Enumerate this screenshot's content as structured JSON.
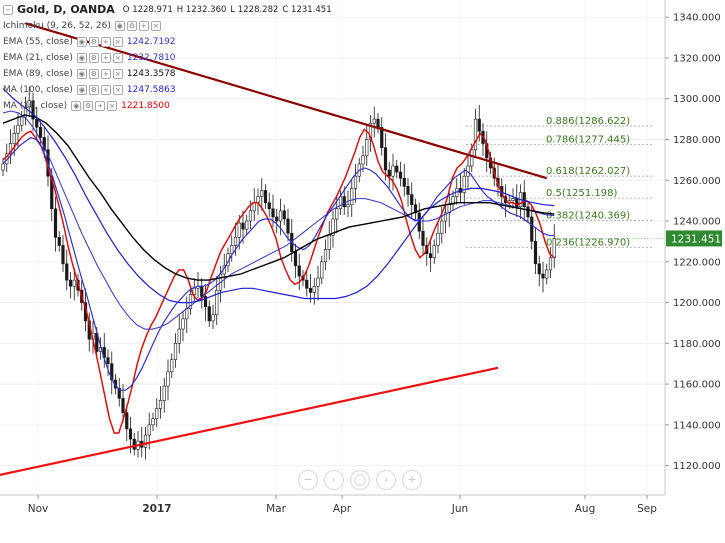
{
  "chart_title": {
    "symbol": "Gold, D, OANDA",
    "ohlc": [
      "O 1228.971",
      "H 1232.360",
      "L 1228.282",
      "C 1231.451"
    ]
  },
  "indicators": [
    {
      "label": "Ichimoku (9, 26, 52, 26)",
      "value": ""
    },
    {
      "label": "EMA (55, close)",
      "value": "1242.7192",
      "color": "#3333cc"
    },
    {
      "label": "EMA (21, close)",
      "value": "1232.7810",
      "color": "#3333cc"
    },
    {
      "label": "EMA (89, close)",
      "value": "1243.3578",
      "color": "#000000"
    },
    {
      "label": "MA (100, close)",
      "value": "1247.5863",
      "color": "#1f1fd6"
    },
    {
      "label": "MA (10, close)",
      "value": "1221.8500",
      "color": "#e00000"
    }
  ],
  "chart_data": {
    "type": "line",
    "instrument": "Gold, D, OANDA",
    "x_axis_labels": [
      "Nov",
      "2017",
      "Mar",
      "Apr",
      "Jun",
      "Aug",
      "Sep"
    ],
    "y_ticks": [
      1120,
      1140,
      1160,
      1180,
      1200,
      1220,
      1240,
      1260,
      1280,
      1300,
      1320,
      1340
    ],
    "ylim": [
      1110,
      1345
    ],
    "last_price": "1231.451",
    "fibonacci": [
      {
        "label": "0.886(1286.622)",
        "value": 1286.622
      },
      {
        "label": "0.786(1277.445)",
        "value": 1277.445
      },
      {
        "label": "0.618(1262.027)",
        "value": 1262.027
      },
      {
        "label": "0.5(1251.198)",
        "value": 1251.198
      },
      {
        "label": "0.382(1240.369)",
        "value": 1240.369
      },
      {
        "label": "0.236(1226.970)",
        "value": 1226.97
      }
    ],
    "closes": [
      1268,
      1273,
      1278,
      1283,
      1287,
      1291,
      1296,
      1299,
      1290,
      1286,
      1281,
      1275,
      1262,
      1246,
      1232,
      1228,
      1219,
      1211,
      1208,
      1211,
      1206,
      1200,
      1191,
      1182,
      1185,
      1176,
      1178,
      1173,
      1170,
      1162,
      1158,
      1153,
      1146,
      1138,
      1133,
      1128,
      1132,
      1129,
      1135,
      1140,
      1143,
      1148,
      1152,
      1159,
      1166,
      1172,
      1180,
      1187,
      1192,
      1197,
      1204,
      1207,
      1208,
      1203,
      1198,
      1191,
      1194,
      1206,
      1214,
      1218,
      1224,
      1228,
      1232,
      1239,
      1236,
      1240,
      1245,
      1249,
      1252,
      1255,
      1249,
      1246,
      1242,
      1240,
      1245,
      1241,
      1234,
      1225,
      1218,
      1213,
      1211,
      1207,
      1205,
      1208,
      1212,
      1220,
      1226,
      1233,
      1241,
      1246,
      1252,
      1247,
      1248,
      1256,
      1262,
      1268,
      1272,
      1280,
      1288,
      1290,
      1286,
      1276,
      1265,
      1262,
      1267,
      1264,
      1261,
      1257,
      1253,
      1248,
      1244,
      1235,
      1228,
      1224,
      1222,
      1228,
      1234,
      1240,
      1244,
      1248,
      1252,
      1256,
      1254,
      1262,
      1267,
      1275,
      1290,
      1284,
      1278,
      1271,
      1266,
      1261,
      1257,
      1252,
      1249,
      1250,
      1251,
      1247,
      1254,
      1247,
      1242,
      1230,
      1219,
      1214,
      1212,
      1216,
      1222,
      1231.451
    ],
    "series": [
      {
        "name": "MA (10, close)",
        "color": "#e00000",
        "width": 1.4,
        "values": [
          1270,
          1272,
          1275,
          1278,
          1281,
          1283,
          1284,
          1281,
          1278,
          1272,
          1264,
          1257,
          1248,
          1239,
          1228,
          1219,
          1211,
          1203,
          1196,
          1186,
          1176,
          1165,
          1154,
          1143,
          1136,
          1136,
          1143,
          1151,
          1160,
          1170,
          1178,
          1184,
          1189,
          1193,
          1198,
          1203,
          1208,
          1213,
          1216,
          1216,
          1211,
          1204,
          1201,
          1202,
          1206,
          1213,
          1219,
          1225,
          1229,
          1233,
          1237,
          1241,
          1244,
          1247,
          1249,
          1249,
          1246,
          1242,
          1237,
          1231,
          1222,
          1216,
          1211,
          1209,
          1210,
          1213,
          1218,
          1225,
          1232,
          1238,
          1244,
          1248,
          1252,
          1257,
          1262,
          1268,
          1274,
          1281,
          1285,
          1283,
          1277,
          1269,
          1264,
          1262,
          1260,
          1256,
          1250,
          1241,
          1233,
          1226,
          1222,
          1224,
          1229,
          1235,
          1240,
          1245,
          1252,
          1261,
          1266,
          1268,
          1271,
          1275,
          1279,
          1283,
          1280,
          1273,
          1264,
          1257,
          1252,
          1249,
          1249,
          1248,
          1249,
          1250,
          1248,
          1244,
          1238,
          1230,
          1224,
          1221.85
        ]
      },
      {
        "name": "EMA (21, close)",
        "color": "#3333cc",
        "width": 1.2,
        "values": [
          1268,
          1271,
          1274,
          1277,
          1279,
          1281,
          1280,
          1276,
          1269,
          1261,
          1252,
          1243,
          1233,
          1223,
          1213,
          1204,
          1194,
          1184,
          1174,
          1166,
          1160,
          1157,
          1157,
          1159,
          1163,
          1168,
          1174,
          1180,
          1186,
          1191,
          1195,
          1199,
          1202,
          1205,
          1207,
          1208,
          1208,
          1209,
          1211,
          1214,
          1218,
          1223,
          1227,
          1231,
          1234,
          1237,
          1240,
          1241,
          1241,
          1239,
          1236,
          1232,
          1229,
          1227,
          1226,
          1228,
          1232,
          1237,
          1242,
          1246,
          1250,
          1254,
          1258,
          1262,
          1265,
          1266,
          1265,
          1263,
          1260,
          1257,
          1253,
          1249,
          1245,
          1242,
          1240,
          1241,
          1244,
          1248,
          1252,
          1255,
          1258,
          1261,
          1263,
          1265,
          1263,
          1259,
          1255,
          1252,
          1250,
          1248,
          1246,
          1244,
          1243,
          1242,
          1240,
          1238,
          1236,
          1234,
          1233,
          1232.78
        ]
      },
      {
        "name": "EMA (55, close)",
        "color": "#3333cc",
        "width": 1.0,
        "values": [
          1293,
          1294,
          1293,
          1290,
          1285,
          1278,
          1270,
          1261,
          1252,
          1243,
          1234,
          1226,
          1218,
          1211,
          1204,
          1198,
          1193,
          1189,
          1187,
          1187,
          1188,
          1190,
          1193,
          1196,
          1199,
          1202,
          1205,
          1208,
          1211,
          1214,
          1216,
          1218,
          1220,
          1222,
          1224,
          1226,
          1228,
          1231,
          1234,
          1237,
          1240,
          1243,
          1246,
          1248,
          1250,
          1251,
          1251,
          1250,
          1249,
          1247,
          1245,
          1243,
          1241,
          1240,
          1240,
          1241,
          1243,
          1245,
          1247,
          1248,
          1249,
          1250,
          1250,
          1249,
          1248,
          1247,
          1246,
          1245,
          1244,
          1243,
          1242.72
        ]
      },
      {
        "name": "EMA (89, close)",
        "color": "#000000",
        "width": 1.4,
        "values": [
          1288,
          1290,
          1292,
          1291,
          1288,
          1283,
          1277,
          1269,
          1261,
          1254,
          1246,
          1239,
          1232,
          1226,
          1221,
          1217,
          1214,
          1212,
          1211,
          1211,
          1212,
          1213,
          1214,
          1216,
          1218,
          1220,
          1222,
          1225,
          1228,
          1231,
          1233,
          1235,
          1237,
          1238,
          1239,
          1240,
          1241,
          1242,
          1244,
          1246,
          1247,
          1248,
          1249,
          1249,
          1249,
          1249,
          1248,
          1247,
          1246,
          1245,
          1244,
          1243.36
        ]
      },
      {
        "name": "MA (100, close)",
        "color": "#1f1fd6",
        "width": 1.2,
        "values": [
          1305,
          1300,
          1296,
          1292,
          1286,
          1279,
          1271,
          1262,
          1252,
          1243,
          1234,
          1226,
          1219,
          1213,
          1208,
          1204,
          1201,
          1200,
          1200,
          1201,
          1203,
          1205,
          1206,
          1207,
          1207,
          1206,
          1205,
          1204,
          1203,
          1202,
          1202,
          1202,
          1202,
          1203,
          1205,
          1208,
          1213,
          1219,
          1226,
          1233,
          1240,
          1246,
          1250,
          1253,
          1255,
          1256,
          1256,
          1255,
          1254,
          1252,
          1250,
          1249,
          1248,
          1247.59
        ]
      }
    ],
    "trendlines": [
      {
        "name": "upper resistance",
        "color": "#8b0000",
        "from": {
          "i": 6,
          "price": 1337
        },
        "to": {
          "i": 145,
          "price": 1261
        }
      },
      {
        "name": "lower support",
        "color": "#ee1111",
        "from": {
          "i": -12,
          "price": 1111
        },
        "to": {
          "i": 132,
          "price": 1168
        }
      }
    ]
  }
}
